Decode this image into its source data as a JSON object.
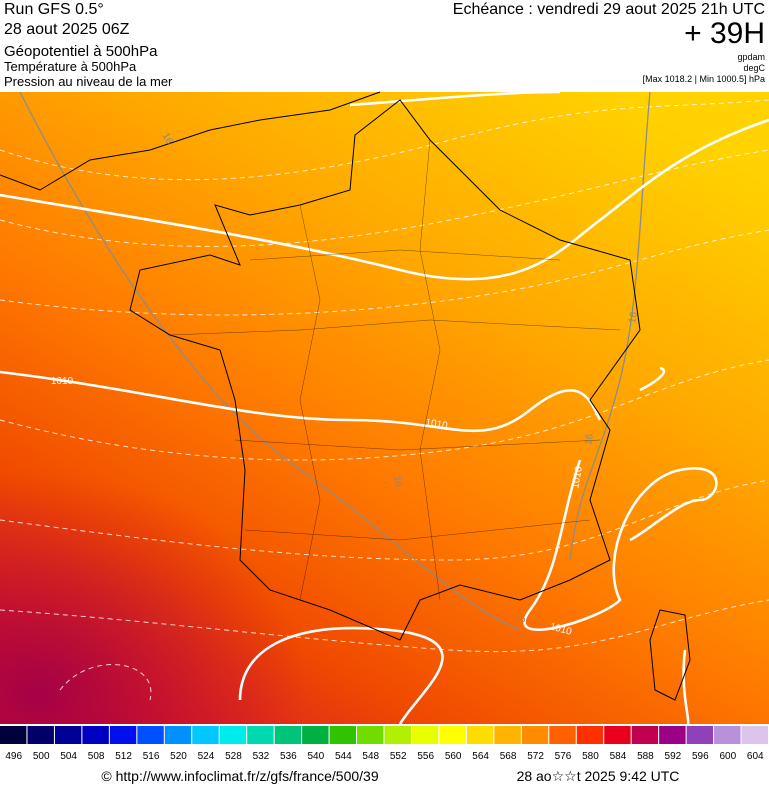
{
  "header": {
    "run": "Run GFS 0.5°",
    "run_date": "28 aout 2025 06Z",
    "field1": "Géopotentiel à 500hPa",
    "field2": "Température à 500hPa",
    "field3": "Pression au niveau de la mer",
    "valid": "Echéance : vendredi 29 aout 2025 21h UTC",
    "lead": "+ 39H",
    "unit1": "gpdam",
    "unit2": "degC",
    "pressure_range": "[Max 1018.2 | Min 1000.5] hPa"
  },
  "contour_labels": [
    "16",
    "16",
    "16",
    "16",
    "16",
    "1010",
    "1010",
    "1010",
    "1010"
  ],
  "scale": [
    {
      "value": 496,
      "color": "#00003c"
    },
    {
      "value": 500,
      "color": "#000068"
    },
    {
      "value": 504,
      "color": "#000094"
    },
    {
      "value": 508,
      "color": "#0000c0"
    },
    {
      "value": 512,
      "color": "#0010ec"
    },
    {
      "value": 516,
      "color": "#0050ff"
    },
    {
      "value": 520,
      "color": "#0090ff"
    },
    {
      "value": 524,
      "color": "#00c8ff"
    },
    {
      "value": 528,
      "color": "#00ecec"
    },
    {
      "value": 532,
      "color": "#00d8b0"
    },
    {
      "value": 536,
      "color": "#00c478"
    },
    {
      "value": 540,
      "color": "#00b040"
    },
    {
      "value": 544,
      "color": "#30c400"
    },
    {
      "value": 548,
      "color": "#70dc00"
    },
    {
      "value": 552,
      "color": "#b0f000"
    },
    {
      "value": 556,
      "color": "#e8ff00"
    },
    {
      "value": 560,
      "color": "#ffff00"
    },
    {
      "value": 564,
      "color": "#ffdc00"
    },
    {
      "value": 568,
      "color": "#ffb400"
    },
    {
      "value": 572,
      "color": "#ff8c00"
    },
    {
      "value": 576,
      "color": "#ff6000"
    },
    {
      "value": 580,
      "color": "#ff3000"
    },
    {
      "value": 584,
      "color": "#e8001e"
    },
    {
      "value": 588,
      "color": "#c00050"
    },
    {
      "value": 592,
      "color": "#9c0084"
    },
    {
      "value": 596,
      "color": "#9040b8"
    },
    {
      "value": 600,
      "color": "#b890dc"
    },
    {
      "value": 604,
      "color": "#dcc4ec"
    }
  ],
  "footer": {
    "url": "© http://www.infoclimat.fr/z/gfs/france/500/39",
    "timestamp": "28 ao☆☆t 2025  9:42 UTC"
  }
}
